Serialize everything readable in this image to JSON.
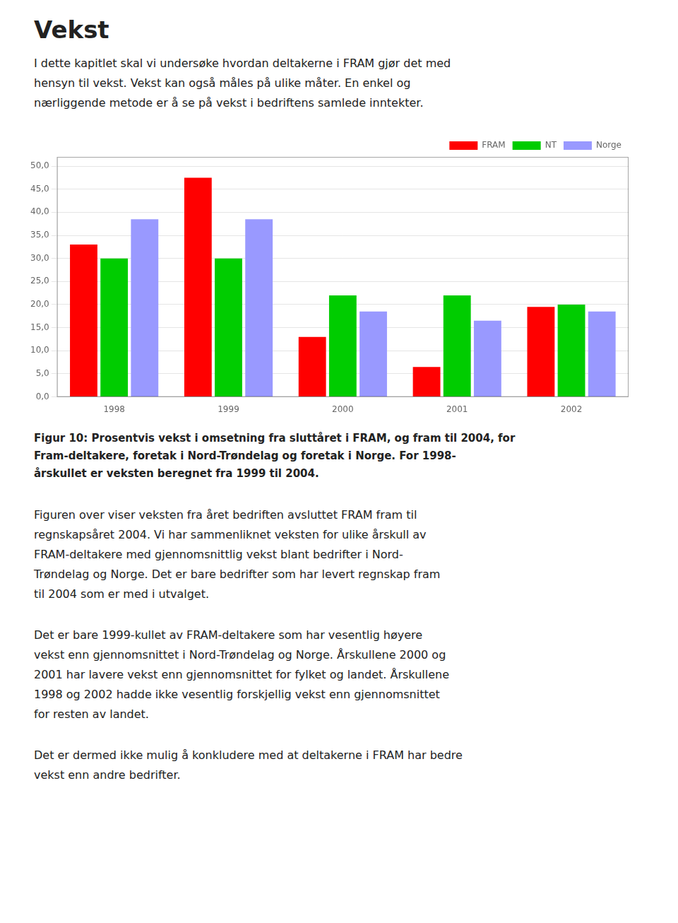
{
  "chart_data": {
    "type": "bar",
    "title": "Vekst",
    "subtitle": [
      "I dette kapitlet skal vi undersøke hvordan deltakerne i FRAM gjør det med",
      "hensyn til vekst.  Vekst kan også måles på ulike måter.  En enkel og",
      "nærliggende metode er å se på vekst i bedriftens samlede inntekter."
    ],
    "annotations": [
      [
        "Figur 10: Prosentvis vekst i omsetning fra sluttåret i FRAM, og fram til 2004, for",
        "Fram-deltakere, foretak i Nord-Trøndelag og foretak i Norge.  For 1998-",
        "årskullet er veksten beregnet fra 1999 til 2004."
      ],
      [
        "Figuren over viser veksten fra året bedriften avsluttet FRAM fram til",
        "regnskapsåret 2004.  Vi har sammenliknet veksten for ulike årskull av",
        "FRAM-deltakere med gjennomsnittlig vekst blant bedrifter i Nord-",
        "Trøndelag og Norge.  Det er bare bedrifter som har levert regnskap fram",
        "til 2004 som er med i utvalget."
      ],
      [
        "Det er bare 1999-kullet av FRAM-deltakere som har vesentlig høyere",
        "vekst enn gjennomsnittet i Nord-Trøndelag og Norge.  Årskullene 2000 og",
        "2001 har lavere vekst enn gjennomsnittet for fylket og landet.  Årskullene",
        "1998 og 2002 hadde ikke vesentlig forskjellig vekst enn gjennomsnittet",
        "for resten av landet."
      ],
      [
        "Det er dermed ikke mulig å konkludere med at deltakerne i FRAM har bedre",
        "vekst enn andre bedrifter."
      ]
    ],
    "categories": [
      "1998",
      "1999",
      "2000",
      "2001",
      "2002"
    ],
    "series": [
      {
        "name": "FRAM",
        "color": "#FF0000",
        "values": [
          33.0,
          47.5,
          13.0,
          6.5,
          19.5
        ]
      },
      {
        "name": "NT",
        "color": "#00CC00",
        "values": [
          30.0,
          30.0,
          22.0,
          22.0,
          20.0
        ]
      },
      {
        "name": "Norge",
        "color": "#9999FF",
        "values": [
          38.5,
          38.5,
          18.5,
          16.5,
          18.5
        ]
      }
    ],
    "ylim": [
      0,
      52
    ],
    "yticks": [
      {
        "value": 0,
        "label": "0,0"
      },
      {
        "value": 5,
        "label": "5,0"
      },
      {
        "value": 10,
        "label": "10,0"
      },
      {
        "value": 15,
        "label": "15,0"
      },
      {
        "value": 20,
        "label": "20,0"
      },
      {
        "value": 25,
        "label": "25,0"
      },
      {
        "value": 30,
        "label": "30,0"
      },
      {
        "value": 35,
        "label": "35,0"
      },
      {
        "value": 40,
        "label": "40,0"
      },
      {
        "value": 45,
        "label": "45,0"
      },
      {
        "value": 50,
        "label": "50,0"
      }
    ],
    "grid": true,
    "legend": "upper right"
  }
}
